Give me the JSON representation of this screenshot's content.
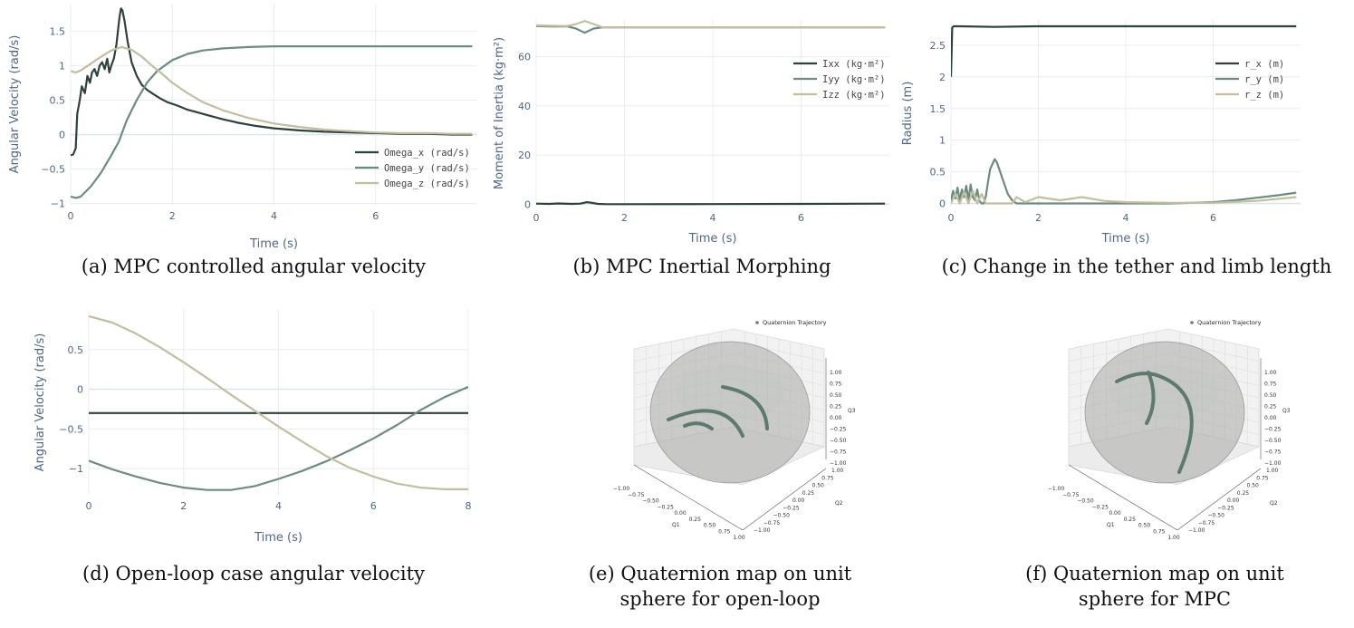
{
  "colors": {
    "x": "#2d4239",
    "y": "#6d8c80",
    "z": "#c2bea0",
    "grid": "#e8ecf1"
  },
  "captions": {
    "a": "(a) MPC controlled angular velocity",
    "b": "(b) MPC Inertial Morphing",
    "c": "(c) Change in the tether and limb length",
    "d": "(d) Open-loop case angular velocity",
    "e1": "(e) Quaternion map on unit",
    "e2": "sphere for open-loop",
    "f1": "(f) Quaternion map on unit",
    "f2": "sphere for MPC"
  },
  "chart_data": [
    {
      "id": "a",
      "type": "line",
      "xlabel": "Time (s)",
      "ylabel": "Angular Velocity (rad/s)",
      "xlim": [
        0,
        8
      ],
      "ylim": [
        -1.02,
        1.9
      ],
      "xticks": [
        0,
        2,
        4,
        6
      ],
      "xtick_labels": [
        "0",
        "2",
        "4",
        "6"
      ],
      "yticks": [
        -1,
        -0.5,
        0,
        0.5,
        1,
        1.5
      ],
      "ytick_labels": [
        "−1",
        "−0.5",
        "0",
        "0.5",
        "1",
        "1.5"
      ],
      "legend_position": "bottom-right",
      "grid": true,
      "series": [
        {
          "name": "Omega_x (rad/s)",
          "color_key": "x",
          "x": [
            0,
            0.05,
            0.1,
            0.13,
            0.18,
            0.22,
            0.28,
            0.33,
            0.38,
            0.42,
            0.47,
            0.52,
            0.57,
            0.62,
            0.67,
            0.72,
            0.76,
            0.8,
            0.85,
            0.9,
            0.93,
            0.96,
            0.99,
            1.02,
            1.06,
            1.12,
            1.2,
            1.3,
            1.4,
            1.5,
            1.6,
            1.75,
            1.9,
            2.1,
            2.3,
            2.5,
            2.7,
            3.0,
            3.3,
            3.6,
            4.0,
            4.5,
            5.0,
            5.5,
            6.0,
            6.5,
            7.0,
            7.5,
            7.9
          ],
          "y": [
            -0.3,
            -0.29,
            -0.2,
            0.3,
            0.5,
            0.7,
            0.6,
            0.85,
            0.75,
            0.9,
            0.95,
            0.85,
            1.0,
            1.05,
            0.95,
            1.1,
            0.9,
            1.0,
            1.1,
            1.3,
            1.5,
            1.7,
            1.83,
            1.8,
            1.65,
            1.35,
            1.05,
            0.85,
            0.72,
            0.65,
            0.6,
            0.53,
            0.47,
            0.42,
            0.36,
            0.32,
            0.28,
            0.22,
            0.17,
            0.13,
            0.09,
            0.06,
            0.04,
            0.03,
            0.02,
            0.01,
            0.01,
            0.0,
            0.0
          ]
        },
        {
          "name": "Omega_y (rad/s)",
          "color_key": "y",
          "x": [
            0,
            0.1,
            0.2,
            0.4,
            0.6,
            0.8,
            0.95,
            1.1,
            1.3,
            1.5,
            1.7,
            2.0,
            2.3,
            2.6,
            3.0,
            3.5,
            4.0,
            4.5,
            5.0,
            6.0,
            7.0,
            7.9
          ],
          "y": [
            -0.9,
            -0.92,
            -0.9,
            -0.75,
            -0.55,
            -0.3,
            -0.1,
            0.2,
            0.5,
            0.75,
            0.92,
            1.08,
            1.17,
            1.22,
            1.25,
            1.27,
            1.28,
            1.28,
            1.28,
            1.28,
            1.28,
            1.28
          ]
        },
        {
          "name": "Omega_z (rad/s)",
          "color_key": "z",
          "x": [
            0,
            0.1,
            0.2,
            0.4,
            0.6,
            0.8,
            1.0,
            1.2,
            1.4,
            1.6,
            1.8,
            2.0,
            2.3,
            2.6,
            3.0,
            3.5,
            4.0,
            4.5,
            5.0,
            5.5,
            6.0,
            6.5,
            7.0,
            7.5,
            7.9
          ],
          "y": [
            0.92,
            0.9,
            0.93,
            1.03,
            1.13,
            1.22,
            1.27,
            1.23,
            1.13,
            1.0,
            0.88,
            0.75,
            0.6,
            0.47,
            0.35,
            0.24,
            0.16,
            0.11,
            0.07,
            0.05,
            0.03,
            0.02,
            0.02,
            0.01,
            0.01
          ]
        }
      ]
    },
    {
      "id": "b",
      "type": "line",
      "xlabel": "Time (s)",
      "ylabel": "Moment of Inertia (kg·m²)",
      "xlim": [
        0,
        8
      ],
      "ylim": [
        -1,
        75
      ],
      "xticks": [
        0,
        2,
        4,
        6
      ],
      "xtick_labels": [
        "0",
        "2",
        "4",
        "6"
      ],
      "yticks": [
        0,
        20,
        40,
        60
      ],
      "ytick_labels": [
        "0",
        "20",
        "40",
        "60"
      ],
      "legend_position": "top-right",
      "grid": true,
      "series": [
        {
          "name": "Ixx (kg·m²)",
          "color_key": "x",
          "x": [
            0,
            0.3,
            0.5,
            0.8,
            1.0,
            1.15,
            1.25,
            1.4,
            1.6,
            2.0,
            4.0,
            6.0,
            7.9
          ],
          "y": [
            0.2,
            0.1,
            0.3,
            0.1,
            0.2,
            0.8,
            0.6,
            0.1,
            0.0,
            0.0,
            0.05,
            0.1,
            0.2
          ]
        },
        {
          "name": "Iyy (kg·m²)",
          "color_key": "y",
          "x": [
            0,
            0.4,
            0.7,
            0.9,
            1.1,
            1.3,
            1.5,
            2.0,
            4.0,
            6.0,
            7.9
          ],
          "y": [
            72.5,
            72.3,
            72.4,
            71.5,
            69.8,
            71.5,
            72.0,
            72.0,
            72.0,
            72.0,
            72.0
          ]
        },
        {
          "name": "Izz (kg·m²)",
          "color_key": "z",
          "x": [
            0,
            0.4,
            0.7,
            0.9,
            1.1,
            1.3,
            1.5,
            2.0,
            4.0,
            6.0,
            7.9
          ],
          "y": [
            72.8,
            72.6,
            72.5,
            73.3,
            74.6,
            73.3,
            72.0,
            72.0,
            72.0,
            72.0,
            72.0
          ]
        }
      ]
    },
    {
      "id": "c",
      "type": "line",
      "xlabel": "Time (s)",
      "ylabel": "Radius (m)",
      "xlim": [
        0,
        8
      ],
      "ylim": [
        -0.05,
        2.9
      ],
      "xticks": [
        0,
        2,
        4,
        6
      ],
      "xtick_labels": [
        "0",
        "2",
        "4",
        "6"
      ],
      "yticks": [
        0,
        0.5,
        1,
        1.5,
        2,
        2.5
      ],
      "ytick_labels": [
        "0",
        "0.5",
        "1",
        "1.5",
        "2",
        "2.5"
      ],
      "legend_position": "top-right",
      "grid": true,
      "series": [
        {
          "name": "r_x (m)",
          "color_key": "x",
          "x": [
            0,
            0.03,
            0.06,
            0.2,
            1.0,
            2.0,
            4.0,
            6.0,
            7.9
          ],
          "y": [
            2.0,
            2.78,
            2.8,
            2.8,
            2.79,
            2.8,
            2.8,
            2.8,
            2.8
          ]
        },
        {
          "name": "r_y (m)",
          "color_key": "y",
          "x": [
            0,
            0.05,
            0.1,
            0.15,
            0.2,
            0.25,
            0.3,
            0.35,
            0.4,
            0.45,
            0.5,
            0.55,
            0.6,
            0.65,
            0.7,
            0.75,
            0.8,
            0.85,
            0.9,
            1.0,
            1.05,
            1.1,
            1.2,
            1.3,
            1.4,
            1.5,
            1.6,
            2.0,
            3.0,
            4.0,
            5.0,
            6.0,
            6.5,
            7.0,
            7.5,
            7.9
          ],
          "y": [
            0.05,
            0.2,
            0.08,
            0.25,
            0.05,
            0.22,
            0.1,
            0.28,
            0.05,
            0.3,
            0.1,
            0.05,
            0.22,
            0.04,
            0.0,
            0.0,
            0.12,
            0.35,
            0.55,
            0.7,
            0.65,
            0.55,
            0.35,
            0.15,
            0.05,
            0.0,
            0.0,
            0.0,
            0.0,
            0.0,
            0.0,
            0.02,
            0.05,
            0.09,
            0.13,
            0.17
          ]
        },
        {
          "name": "r_z (m)",
          "color_key": "z",
          "x": [
            0,
            0.1,
            0.2,
            0.3,
            0.4,
            0.5,
            0.6,
            0.7,
            0.8,
            1.0,
            1.4,
            1.5,
            1.7,
            2.0,
            2.5,
            3.0,
            3.5,
            4.0,
            5.0,
            6.0,
            7.0,
            7.9
          ],
          "y": [
            0.0,
            0.15,
            0.0,
            0.18,
            0.0,
            0.2,
            0.0,
            0.15,
            0.0,
            0.0,
            0.0,
            0.1,
            0.02,
            0.1,
            0.05,
            0.1,
            0.04,
            0.02,
            0.01,
            0.01,
            0.04,
            0.1
          ]
        }
      ]
    },
    {
      "id": "d",
      "type": "line",
      "xlabel": "Time (s)",
      "ylabel": "Angular Velocity (rad/s)",
      "xlim": [
        0,
        8
      ],
      "ylim": [
        -1.33,
        1.0
      ],
      "xticks": [
        0,
        2,
        4,
        6,
        8
      ],
      "xtick_labels": [
        "0",
        "2",
        "4",
        "6",
        "8"
      ],
      "yticks": [
        -1,
        -0.5,
        0,
        0.5
      ],
      "ytick_labels": [
        "−1",
        "−0.5",
        "0",
        "0.5"
      ],
      "legend_position": "none",
      "grid": true,
      "series": [
        {
          "color_key": "x",
          "x": [
            0,
            8
          ],
          "y": [
            -0.3,
            -0.3
          ]
        },
        {
          "color_key": "y",
          "x": [
            0,
            0.5,
            1,
            1.5,
            2,
            2.5,
            3,
            3.5,
            4,
            4.5,
            5,
            5.5,
            6,
            6.5,
            7,
            7.5,
            8
          ],
          "y": [
            -0.9,
            -1.01,
            -1.1,
            -1.18,
            -1.24,
            -1.27,
            -1.27,
            -1.22,
            -1.13,
            -1.03,
            -0.91,
            -0.77,
            -0.62,
            -0.45,
            -0.26,
            -0.1,
            0.03
          ]
        },
        {
          "color_key": "z",
          "x": [
            0,
            0.5,
            1,
            1.5,
            2,
            2.5,
            3,
            3.5,
            4,
            4.5,
            5,
            5.5,
            6,
            6.5,
            7,
            7.5,
            8
          ],
          "y": [
            0.92,
            0.84,
            0.7,
            0.53,
            0.34,
            0.14,
            -0.07,
            -0.27,
            -0.47,
            -0.66,
            -0.84,
            -0.99,
            -1.1,
            -1.19,
            -1.24,
            -1.26,
            -1.26
          ]
        }
      ]
    }
  ],
  "quaternion_plots": [
    {
      "id": "e",
      "legend": "Quaternion Trajectory",
      "axis_q1": "Q1",
      "axis_q2": "Q2",
      "axis_q3": "Q3",
      "q1_ticks": [
        "−1.00",
        "−0.75",
        "−0.50",
        "−0.25",
        "0.00",
        "0.25",
        "0.50",
        "0.75",
        "1.00"
      ],
      "q2_ticks": [
        "1.00",
        "0.75",
        "0.50",
        "0.25",
        "0.00",
        "−0.25",
        "−0.50",
        "−0.75",
        "−1.00"
      ],
      "q3_ticks": [
        "1.00",
        "0.75",
        "0.50",
        "0.25",
        "0.00",
        "−0.25",
        "−0.50",
        "−0.75",
        "−1.00"
      ]
    },
    {
      "id": "f",
      "legend": "Quaternion Trajectory",
      "axis_q1": "Q1",
      "axis_q2": "Q2",
      "axis_q3": "Q3",
      "q1_ticks": [
        "−1.00",
        "−0.75",
        "−0.50",
        "−0.25",
        "0.00",
        "0.25",
        "0.50",
        "0.75",
        "1.00"
      ],
      "q2_ticks": [
        "1.00",
        "0.75",
        "0.50",
        "0.25",
        "0.00",
        "−0.25",
        "−0.50",
        "−0.75",
        "−1.00"
      ],
      "q3_ticks": [
        "1.00",
        "0.75",
        "0.50",
        "0.25",
        "0.00",
        "−0.25",
        "−0.50",
        "−0.75",
        "−1.00"
      ]
    }
  ]
}
